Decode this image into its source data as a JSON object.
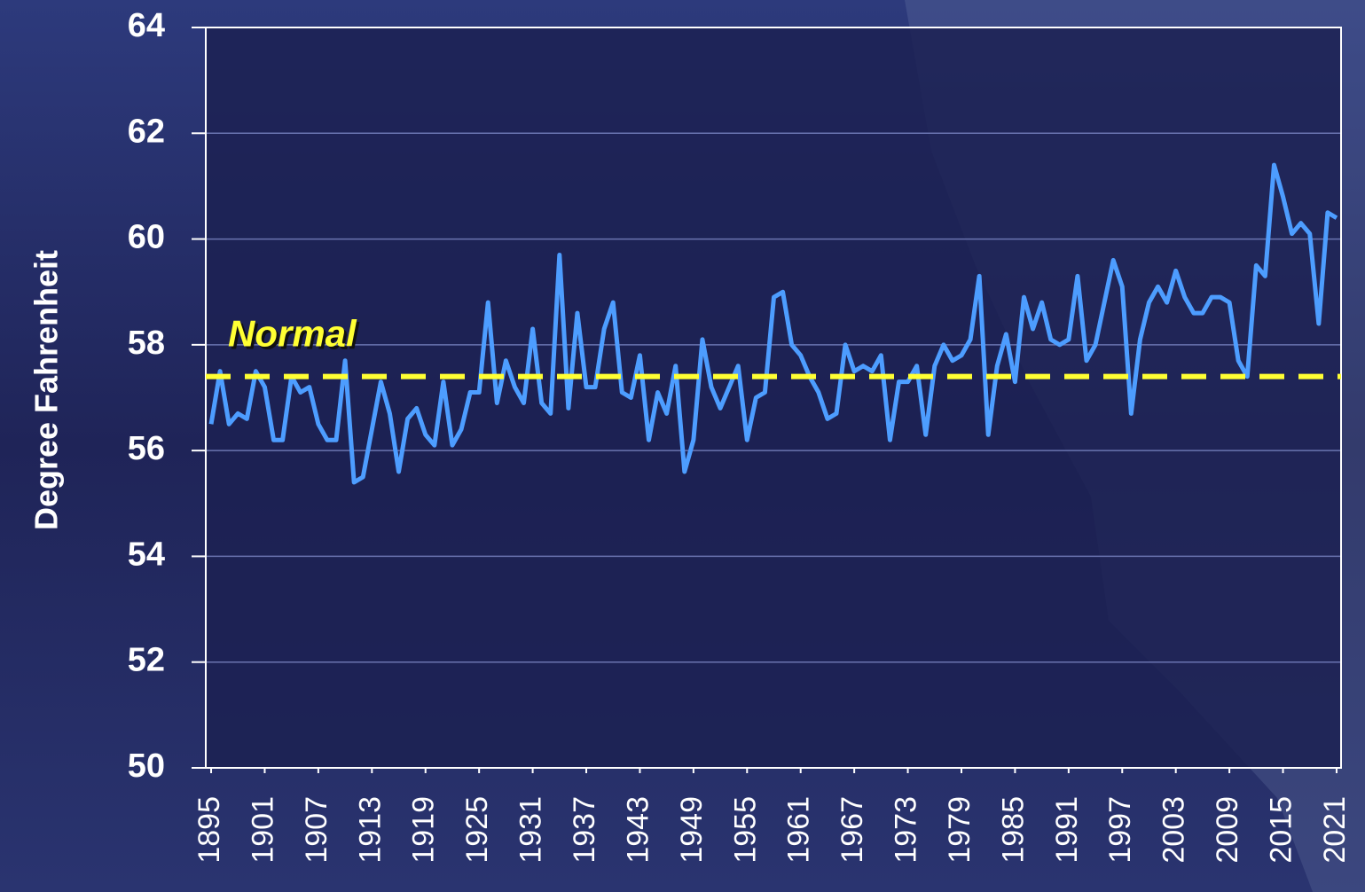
{
  "chart_data": {
    "type": "line",
    "ylabel": "Degree Fahrenheit",
    "x": [
      1895,
      1896,
      1897,
      1898,
      1899,
      1900,
      1901,
      1902,
      1903,
      1904,
      1905,
      1906,
      1907,
      1908,
      1909,
      1910,
      1911,
      1912,
      1913,
      1914,
      1915,
      1916,
      1917,
      1918,
      1919,
      1920,
      1921,
      1922,
      1923,
      1924,
      1925,
      1926,
      1927,
      1928,
      1929,
      1930,
      1931,
      1932,
      1933,
      1934,
      1935,
      1936,
      1937,
      1938,
      1939,
      1940,
      1941,
      1942,
      1943,
      1944,
      1945,
      1946,
      1947,
      1948,
      1949,
      1950,
      1951,
      1952,
      1953,
      1954,
      1955,
      1956,
      1957,
      1958,
      1959,
      1960,
      1961,
      1962,
      1963,
      1964,
      1965,
      1966,
      1967,
      1968,
      1969,
      1970,
      1971,
      1972,
      1973,
      1974,
      1975,
      1976,
      1977,
      1978,
      1979,
      1980,
      1981,
      1982,
      1983,
      1984,
      1985,
      1986,
      1987,
      1988,
      1989,
      1990,
      1991,
      1992,
      1993,
      1994,
      1995,
      1996,
      1997,
      1998,
      1999,
      2000,
      2001,
      2002,
      2003,
      2004,
      2005,
      2006,
      2007,
      2008,
      2009,
      2010,
      2011,
      2012,
      2013,
      2014,
      2015,
      2016,
      2017,
      2018,
      2019,
      2020,
      2021
    ],
    "series": [
      {
        "color": "#4d9dff",
        "values": [
          56.5,
          57.5,
          56.5,
          56.7,
          56.6,
          57.5,
          57.2,
          56.2,
          56.2,
          57.4,
          57.1,
          57.2,
          56.5,
          56.2,
          56.2,
          57.7,
          55.4,
          55.5,
          56.4,
          57.3,
          56.7,
          55.6,
          56.6,
          56.8,
          56.3,
          56.1,
          57.3,
          56.1,
          56.4,
          57.1,
          57.1,
          58.8,
          56.9,
          57.7,
          57.2,
          56.9,
          58.3,
          56.9,
          56.7,
          59.7,
          56.8,
          58.6,
          57.2,
          57.2,
          58.3,
          58.8,
          57.1,
          57.0,
          57.8,
          56.2,
          57.1,
          56.7,
          57.6,
          55.6,
          56.2,
          58.1,
          57.2,
          56.8,
          57.2,
          57.6,
          56.2,
          57.0,
          57.1,
          58.9,
          59.0,
          58.0,
          57.8,
          57.4,
          57.1,
          56.6,
          56.7,
          58.0,
          57.5,
          57.6,
          57.5,
          57.8,
          56.2,
          57.3,
          57.3,
          57.6,
          56.3,
          57.6,
          58.0,
          57.7,
          57.8,
          58.1,
          59.3,
          56.3,
          57.6,
          58.2,
          57.3,
          58.9,
          58.3,
          58.8,
          58.1,
          58.0,
          58.1,
          59.3,
          57.7,
          58.0,
          58.8,
          59.6,
          59.1,
          56.7,
          58.1,
          58.8,
          59.1,
          58.8,
          59.4,
          58.9,
          58.6,
          58.6,
          58.9,
          58.9,
          58.8,
          57.7,
          57.4,
          59.5,
          59.3,
          61.4,
          60.8,
          60.1,
          60.3,
          60.1,
          58.4,
          60.5,
          60.4
        ]
      }
    ],
    "normal": {
      "text": "Normal",
      "value": 57.4,
      "color": "#ffff33"
    },
    "xlim": [
      1894.4,
      2021.5
    ],
    "xticks": [
      1895,
      1901,
      1907,
      1913,
      1919,
      1925,
      1931,
      1937,
      1943,
      1949,
      1955,
      1961,
      1967,
      1973,
      1979,
      1985,
      1991,
      1997,
      2003,
      2009,
      2015,
      2021
    ],
    "ylim": [
      50,
      64
    ],
    "yticks": [
      50,
      52,
      54,
      56,
      58,
      60,
      62,
      64
    ],
    "grid": true
  }
}
